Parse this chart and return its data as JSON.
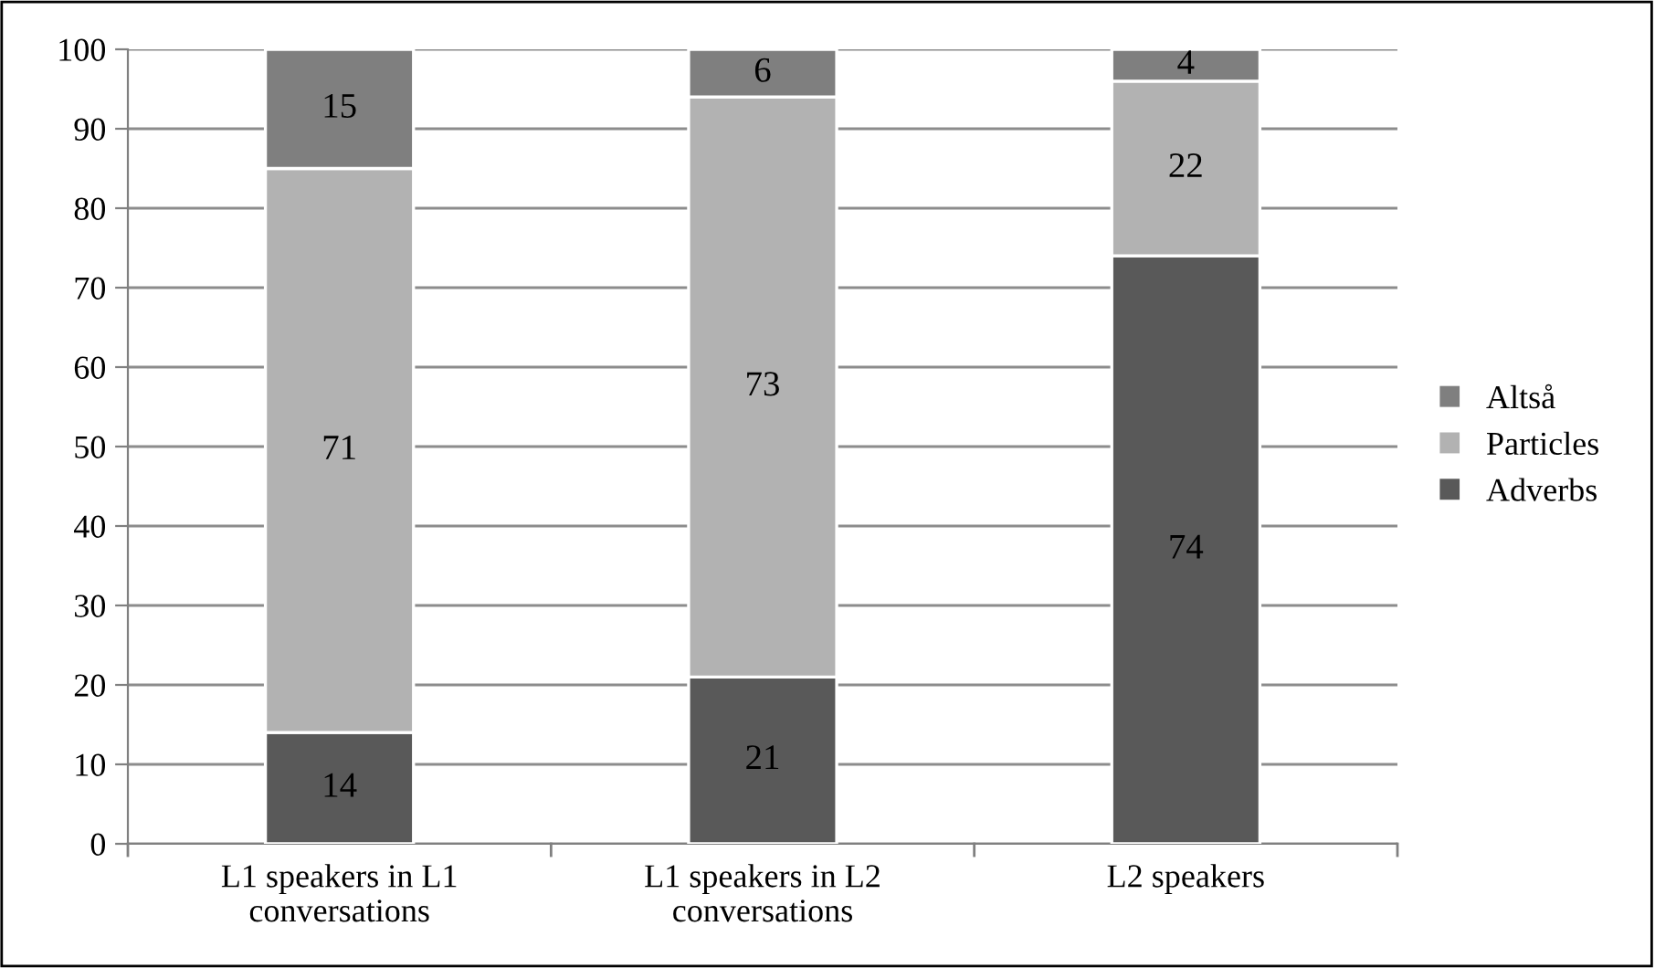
{
  "chart_data": {
    "type": "bar",
    "stacked": true,
    "categories": [
      "L1 speakers in L1\nconversations",
      "L1 speakers in L2\nconversations",
      "L2 speakers"
    ],
    "series": [
      {
        "name": "Adverbs",
        "color": "#595959",
        "values": [
          14,
          21,
          74
        ]
      },
      {
        "name": "Particles",
        "color": "#b2b2b2",
        "values": [
          71,
          73,
          22
        ]
      },
      {
        "name": "Altså",
        "color": "#7f7f7f",
        "values": [
          15,
          6,
          4
        ]
      }
    ],
    "ylim": [
      0,
      100
    ],
    "yticks": [
      0,
      10,
      20,
      30,
      40,
      50,
      60,
      70,
      80,
      90,
      100
    ],
    "grid": "y",
    "legend": "right",
    "data_labels": true
  }
}
